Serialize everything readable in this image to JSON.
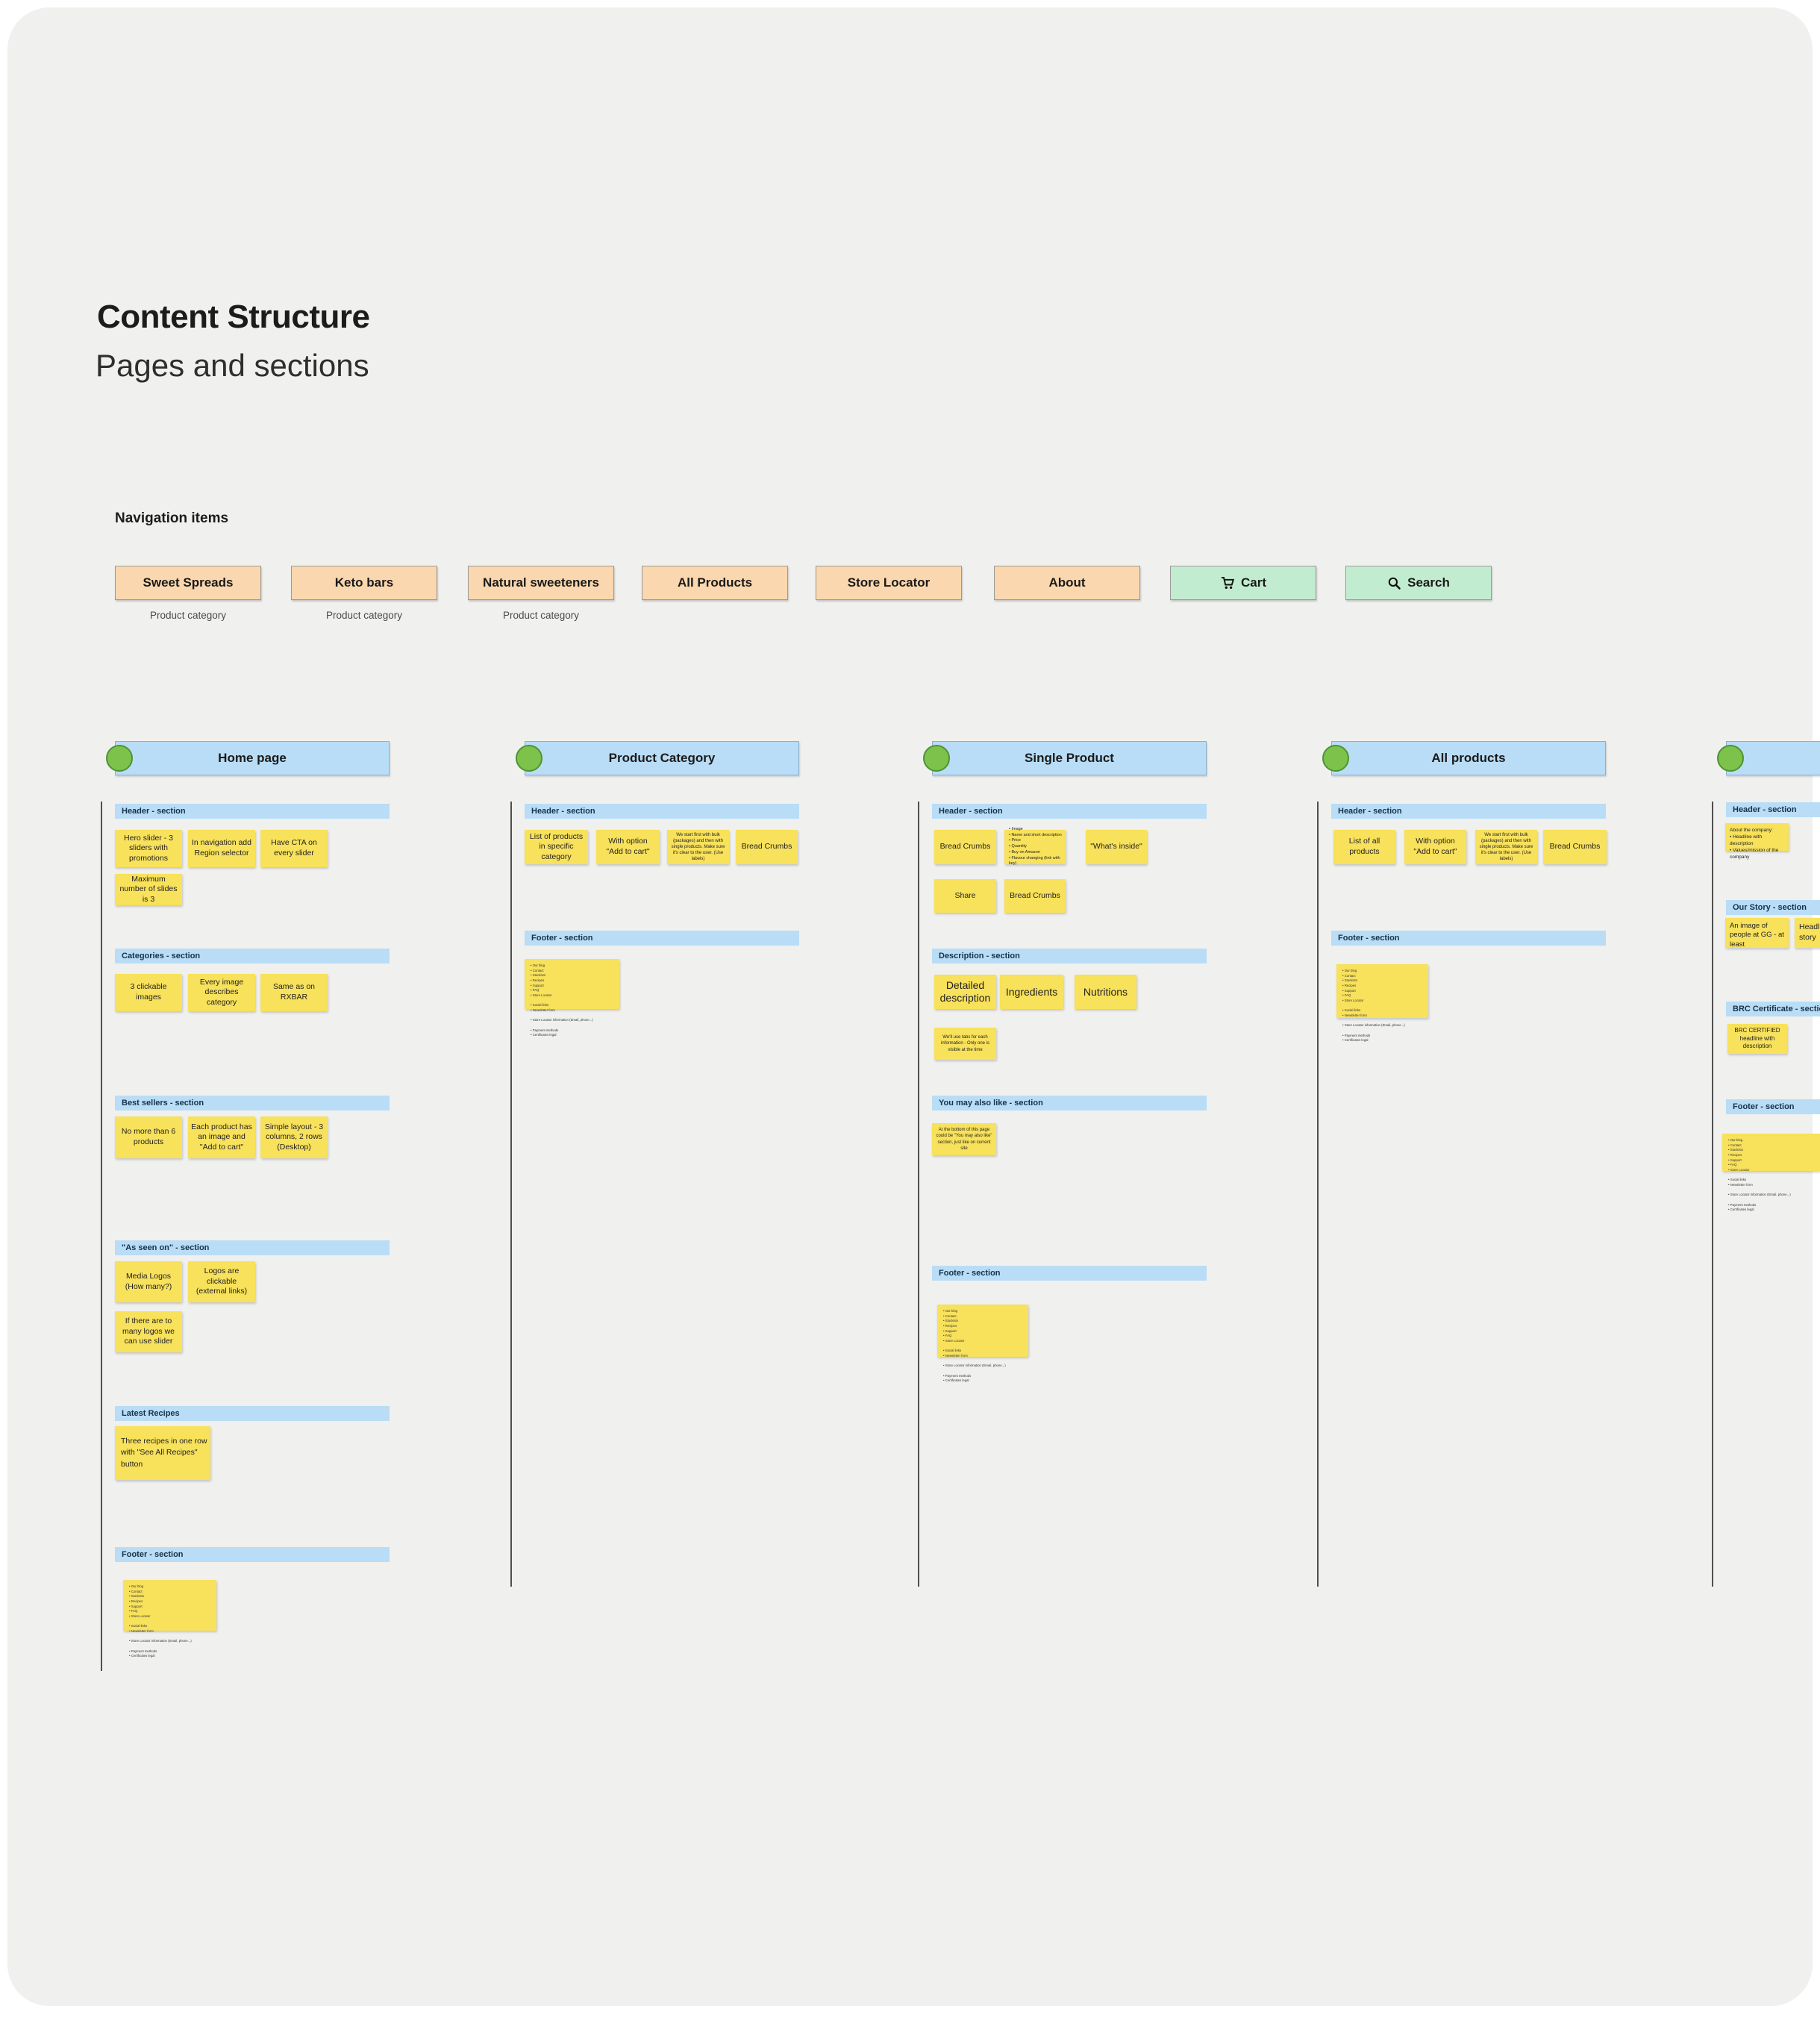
{
  "page": {
    "title": "Content Structure",
    "subtitle": "Pages and sections"
  },
  "navigation": {
    "label": "Navigation items",
    "items": [
      {
        "label": "Sweet Spreads",
        "caption": "Product category"
      },
      {
        "label": "Keto bars",
        "caption": "Product category"
      },
      {
        "label": "Natural sweeteners",
        "caption": "Product category"
      },
      {
        "label": "All Products"
      },
      {
        "label": "Store Locator"
      },
      {
        "label": "About"
      },
      {
        "label": "Cart",
        "icon": "cart-icon"
      },
      {
        "label": "Search",
        "icon": "search-icon"
      }
    ]
  },
  "colors": {
    "canvas": "#f0f0ee",
    "category_button": "#fad7ae",
    "action_button": "#c2eccf",
    "section_bar": "#b9ddf6",
    "sticky_note": "#f8e15b",
    "connector_dot": "#7dc24b"
  },
  "columns": [
    {
      "title": "Home page",
      "sections": [
        {
          "title": "Header - section",
          "notes": [
            {
              "text": "Hero slider - 3 sliders with promotions"
            },
            {
              "text": "In navigation add Region selector"
            },
            {
              "text": "Have CTA on every slider"
            },
            {
              "text": "Maximum number of slides is 3"
            }
          ]
        },
        {
          "title": "Categories - section",
          "notes": [
            {
              "text": "3 clickable images"
            },
            {
              "text": "Every image describes category"
            },
            {
              "text": "Same as on RXBAR"
            }
          ]
        },
        {
          "title": "Best sellers - section",
          "notes": [
            {
              "text": "No more than 6 products"
            },
            {
              "text": "Each product has an image and \"Add to cart\""
            },
            {
              "text": "Simple layout - 3 columns, 2 rows (Desktop)"
            }
          ]
        },
        {
          "title": "\"As seen on\" - section",
          "notes": [
            {
              "text": "Media Logos (How many?)"
            },
            {
              "text": "Logos are clickable (external links)"
            },
            {
              "text": "If there are to many logos we can use slider"
            }
          ]
        },
        {
          "title": "Latest Recipes",
          "notes": [
            {
              "text": "Three recipes in one row with \"See All Recipes\" button"
            }
          ]
        },
        {
          "title": "Footer - section",
          "notes": [
            {
              "text": "• Our blog\n• Contact\n• Stockists\n• Recipes\n• Support\n• FAQ\n• Store Locator\n\n• Social links\n• Newsletter form\n\n• Store Locator information (Email, phone...)\n\n• Payment methods\n• Certificates legal"
            }
          ]
        }
      ]
    },
    {
      "title": "Product Category",
      "sections": [
        {
          "title": "Header - section",
          "notes": [
            {
              "text": "List of products in specific category"
            },
            {
              "text": "With option \"Add to cart\""
            },
            {
              "text": "We start first with bulk (packages) and then with single products. Make sure it's clear to the user. (Use labels)"
            },
            {
              "text": "Bread Crumbs"
            }
          ]
        },
        {
          "title": "Footer - section",
          "notes": [
            {
              "text": "• Our blog\n• Contact\n• Stockists\n• Recipes\n• Support\n• FAQ\n• Store Locator\n\n• Social links\n• Newsletter form\n\n• Store Locator information (Email, phone...)\n\n• Payment methods\n• Certificates legal"
            }
          ]
        }
      ]
    },
    {
      "title": "Single Product",
      "sections": [
        {
          "title": "Header - section",
          "notes": [
            {
              "text": "Bread Crumbs"
            },
            {
              "text": "• Image\n• Name and short description\n• Price\n• Quantity\n• Buy on Amazon\n• Flavour changing (link with key)"
            },
            {
              "text": "\"What's inside\""
            },
            {
              "text": "Share"
            },
            {
              "text": "Bread Crumbs"
            }
          ]
        },
        {
          "title": "Description - section",
          "notes": [
            {
              "text": "Detailed description"
            },
            {
              "text": "Ingredients"
            },
            {
              "text": "Nutritions"
            },
            {
              "text": "We'll use tabs for each information - Only one is visible at the time"
            }
          ]
        },
        {
          "title": "You may also like - section",
          "notes": [
            {
              "text": "At the bottom of this page could be \"You may also like\" section, just like on current site"
            }
          ]
        },
        {
          "title": "Footer - section",
          "notes": [
            {
              "text": "• Our blog\n• Contact\n• Stockists\n• Recipes\n• Support\n• FAQ\n• Store Locator\n\n• Social links\n• Newsletter form\n\n• Store Locator information (Email, phone...)\n\n• Payment methods\n• Certificates legal"
            }
          ]
        }
      ]
    },
    {
      "title": "All products",
      "sections": [
        {
          "title": "Header - section",
          "notes": [
            {
              "text": "List of all products"
            },
            {
              "text": "With option \"Add to cart\""
            },
            {
              "text": "We start first with bulk (packages) and then with single products. Make sure it's clear to the user. (Use labels)"
            },
            {
              "text": "Bread Crumbs"
            }
          ]
        },
        {
          "title": "Footer - section",
          "notes": [
            {
              "text": "• Our blog\n• Contact\n• Stockists\n• Recipes\n• Support\n• FAQ\n• Store Locator\n\n• Social links\n• Newsletter form\n\n• Store Locator information (Email, phone...)\n\n• Payment methods\n• Certificates legal"
            }
          ]
        }
      ]
    },
    {
      "title": "",
      "sections": [
        {
          "title": "Header - section",
          "notes": [
            {
              "text": "About the company:\n• Headline with description\n• Values/mission of the company"
            }
          ]
        },
        {
          "title": "Our Story - section",
          "notes": [
            {
              "text": "An image of people at GG - at least"
            },
            {
              "text": "Headline\nstory"
            }
          ]
        },
        {
          "title": "BRC Certificate - section",
          "notes": [
            {
              "text": "BRC CERTIFIED headline with description"
            }
          ]
        },
        {
          "title": "Footer - section",
          "notes": [
            {
              "text": "• Our blog\n• Contact\n• Stockists\n• Recipes\n• Support\n• FAQ\n• Store Locator\n\n• Social links\n• Newsletter form\n\n• Store Locator information (Email, phone...)\n\n• Payment methods\n• Certificates legal"
            }
          ]
        }
      ]
    }
  ]
}
